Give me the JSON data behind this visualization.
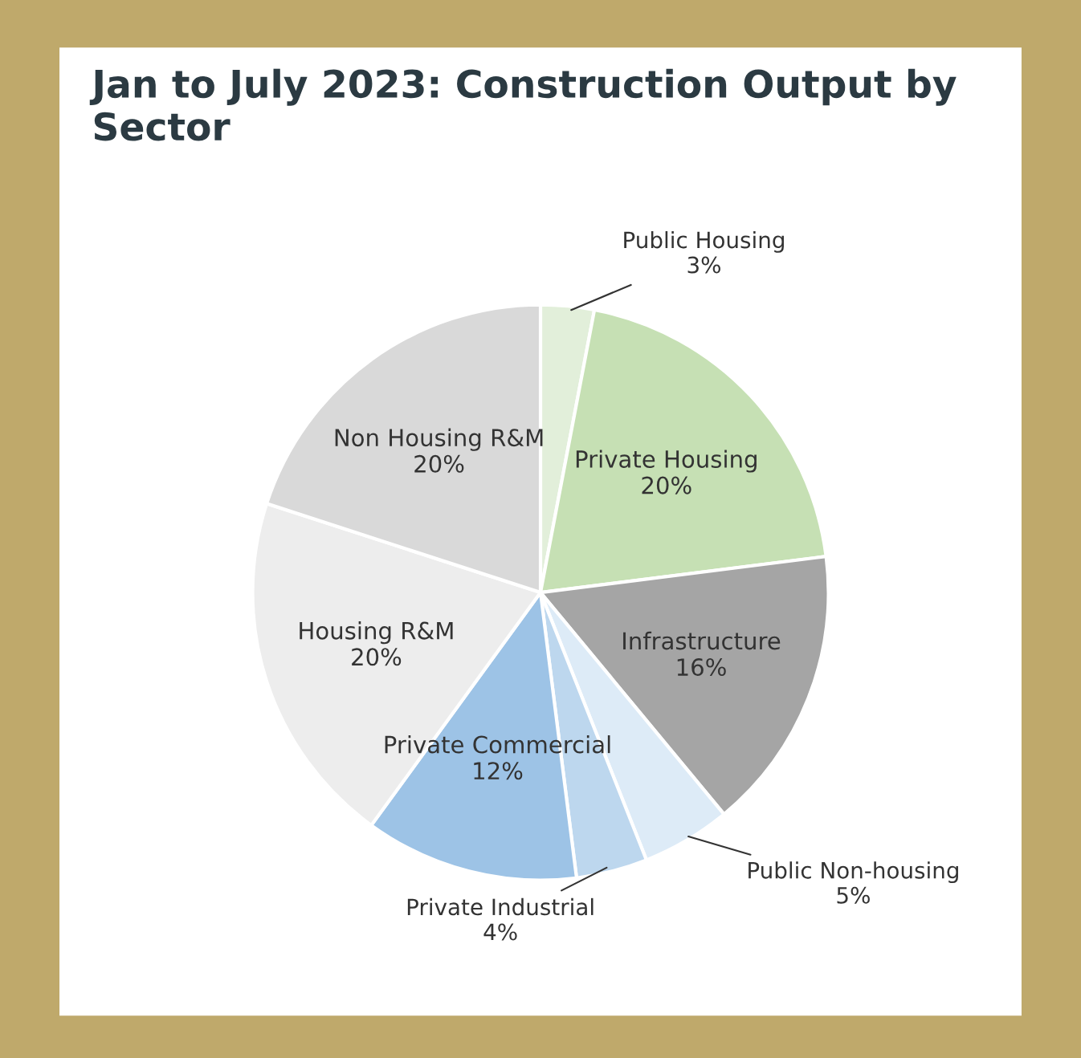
{
  "chart_data": {
    "type": "pie",
    "title": "Jan to July 2023: Construction Output by Sector",
    "categories": [
      "Public Housing",
      "Private Housing",
      "Infrastructure",
      "Public Non-housing",
      "Private Industrial",
      "Private Commercial",
      "Housing R&M",
      "Non Housing R&M"
    ],
    "values": [
      3,
      20,
      16,
      5,
      4,
      12,
      20,
      20
    ],
    "value_labels": [
      "3%",
      "20%",
      "16%",
      "5%",
      "4%",
      "12%",
      "20%",
      "20%"
    ],
    "colors": [
      "#e2efda",
      "#c6e0b4",
      "#a5a5a5",
      "#ddebf7",
      "#bdd7ee",
      "#9dc3e6",
      "#ededed",
      "#d9d9d9"
    ],
    "legend": false
  }
}
